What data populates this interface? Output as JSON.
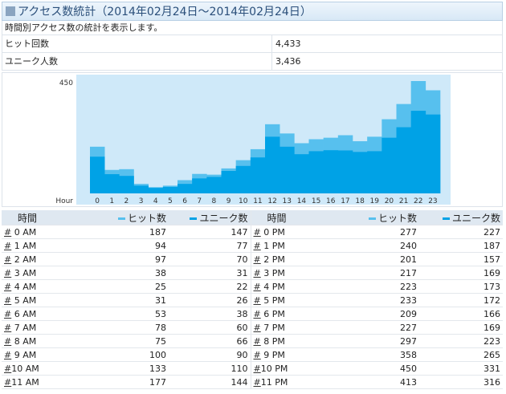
{
  "title": "アクセス数統計（2014年02月24日～2014年02月24日）",
  "description": "時間別アクセス数の統計を表示します。",
  "stats": [
    {
      "label": "ヒット回数",
      "value": "4,433"
    },
    {
      "label": "ユニーク人数",
      "value": "3,436"
    }
  ],
  "colors": {
    "hits": "#57c0ee",
    "unique": "#00a2e6",
    "plot_bg": "#cfe9f9"
  },
  "chart_data": {
    "type": "bar",
    "stacked_overlap": true,
    "x": [
      "0",
      "1",
      "2",
      "3",
      "4",
      "5",
      "6",
      "7",
      "8",
      "9",
      "10",
      "11",
      "12",
      "13",
      "14",
      "15",
      "16",
      "17",
      "18",
      "19",
      "20",
      "21",
      "22",
      "23"
    ],
    "xlabel": "Hour",
    "ylim": [
      0,
      450
    ],
    "ytick": "450",
    "series": [
      {
        "name": "ヒット数",
        "values": [
          187,
          94,
          97,
          38,
          25,
          31,
          53,
          78,
          75,
          100,
          133,
          177,
          277,
          240,
          201,
          217,
          223,
          233,
          209,
          227,
          297,
          358,
          450,
          413
        ]
      },
      {
        "name": "ユニーク数",
        "values": [
          147,
          77,
          70,
          31,
          22,
          26,
          38,
          60,
          66,
          90,
          110,
          144,
          227,
          187,
          157,
          169,
          173,
          172,
          166,
          169,
          223,
          265,
          331,
          316
        ]
      }
    ]
  },
  "table": {
    "headers": {
      "time": "時間",
      "hits": "ヒット数",
      "unique": "ユニーク数"
    },
    "hash": "#",
    "left": [
      {
        "time": " 0 AM",
        "hits": "187",
        "unique": "147"
      },
      {
        "time": " 1 AM",
        "hits": "94",
        "unique": "77"
      },
      {
        "time": " 2 AM",
        "hits": "97",
        "unique": "70"
      },
      {
        "time": " 3 AM",
        "hits": "38",
        "unique": "31"
      },
      {
        "time": " 4 AM",
        "hits": "25",
        "unique": "22"
      },
      {
        "time": " 5 AM",
        "hits": "31",
        "unique": "26"
      },
      {
        "time": " 6 AM",
        "hits": "53",
        "unique": "38"
      },
      {
        "time": " 7 AM",
        "hits": "78",
        "unique": "60"
      },
      {
        "time": " 8 AM",
        "hits": "75",
        "unique": "66"
      },
      {
        "time": " 9 AM",
        "hits": "100",
        "unique": "90"
      },
      {
        "time": "10 AM",
        "hits": "133",
        "unique": "110"
      },
      {
        "time": "11 AM",
        "hits": "177",
        "unique": "144"
      }
    ],
    "right": [
      {
        "time": " 0 PM",
        "hits": "277",
        "unique": "227"
      },
      {
        "time": " 1 PM",
        "hits": "240",
        "unique": "187"
      },
      {
        "time": " 2 PM",
        "hits": "201",
        "unique": "157"
      },
      {
        "time": " 3 PM",
        "hits": "217",
        "unique": "169"
      },
      {
        "time": " 4 PM",
        "hits": "223",
        "unique": "173"
      },
      {
        "time": " 5 PM",
        "hits": "233",
        "unique": "172"
      },
      {
        "time": " 6 PM",
        "hits": "209",
        "unique": "166"
      },
      {
        "time": " 7 PM",
        "hits": "227",
        "unique": "169"
      },
      {
        "time": " 8 PM",
        "hits": "297",
        "unique": "223"
      },
      {
        "time": " 9 PM",
        "hits": "358",
        "unique": "265"
      },
      {
        "time": "10 PM",
        "hits": "450",
        "unique": "331"
      },
      {
        "time": "11 PM",
        "hits": "413",
        "unique": "316"
      }
    ]
  }
}
